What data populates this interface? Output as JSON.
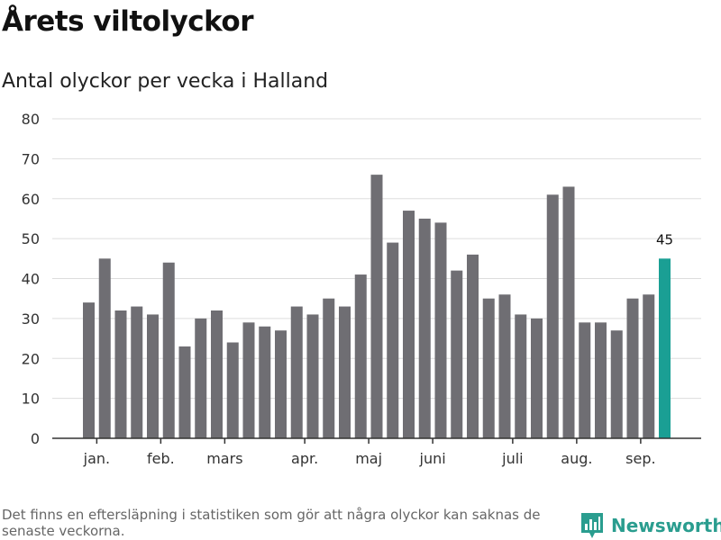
{
  "title": "Årets viltolyckor",
  "subtitle": "Antal olyckor per vecka i Halland",
  "footnote": "Det finns en eftersläpning i statistiken som gör att några olyckor kan saknas de senaste veckorna.",
  "brand": {
    "name": "Newsworthy",
    "icon": "bar-chart-logo-icon",
    "color": "#2a9d8f"
  },
  "colors": {
    "bar": "#6f6e73",
    "highlight": "#1a9f94",
    "grid": "#dddddd",
    "axis": "#333333"
  },
  "chart_data": {
    "type": "bar",
    "title": "",
    "xlabel": "",
    "ylabel": "",
    "ylim": [
      0,
      80
    ],
    "yticks": [
      0,
      10,
      20,
      30,
      40,
      50,
      60,
      70,
      80
    ],
    "grid": true,
    "values": [
      34,
      45,
      32,
      33,
      31,
      44,
      23,
      30,
      32,
      24,
      29,
      28,
      27,
      33,
      31,
      35,
      33,
      41,
      66,
      49,
      57,
      55,
      54,
      42,
      46,
      35,
      36,
      31,
      30,
      61,
      63,
      29,
      29,
      27,
      35,
      36,
      45
    ],
    "highlight_index": 36,
    "highlight_label": "45",
    "month_ticks": [
      {
        "label": "jan.",
        "bar": 0.5
      },
      {
        "label": "feb.",
        "bar": 4.5
      },
      {
        "label": "mars",
        "bar": 8.5
      },
      {
        "label": "apr.",
        "bar": 13.5
      },
      {
        "label": "maj",
        "bar": 17.5
      },
      {
        "label": "juni",
        "bar": 21.5
      },
      {
        "label": "juli",
        "bar": 26.5
      },
      {
        "label": "aug.",
        "bar": 30.5
      },
      {
        "label": "sep.",
        "bar": 34.5
      }
    ]
  }
}
